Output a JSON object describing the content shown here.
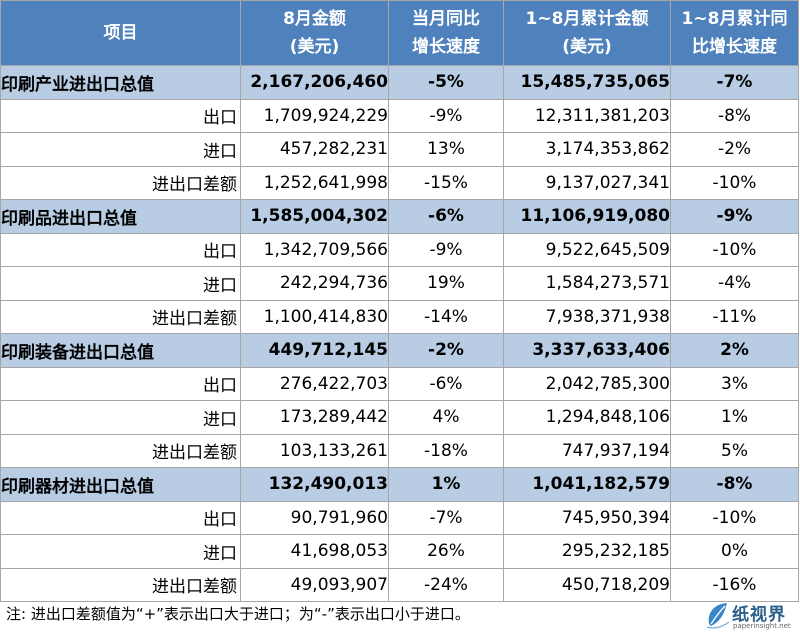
{
  "header": {
    "item": "项目",
    "col1": [
      "8月金额",
      "(美元)"
    ],
    "col2": [
      "当月同比",
      "增长速度"
    ],
    "col3": [
      "1~8月累计金额",
      "(美元)"
    ],
    "col4": [
      "1~8月累计同",
      "比增长速度"
    ]
  },
  "rows": [
    {
      "type": "sum",
      "item": "印刷产业进出口总值",
      "aug": "2,167,206,460",
      "yoy": "-5%",
      "ytd": "15,485,735,065",
      "ytd_yoy": "-7%"
    },
    {
      "type": "sub",
      "item": "出口",
      "aug": "1,709,924,229",
      "yoy": "-9%",
      "ytd": "12,311,381,203",
      "ytd_yoy": "-8%"
    },
    {
      "type": "sub",
      "item": "进口",
      "aug": "457,282,231",
      "yoy": "13%",
      "ytd": "3,174,353,862",
      "ytd_yoy": "-2%"
    },
    {
      "type": "sub",
      "item": "进出口差额",
      "aug": "1,252,641,998",
      "yoy": "-15%",
      "ytd": "9,137,027,341",
      "ytd_yoy": "-10%"
    },
    {
      "type": "sum",
      "item": "印刷品进出口总值",
      "aug": "1,585,004,302",
      "yoy": "-6%",
      "ytd": "11,106,919,080",
      "ytd_yoy": "-9%"
    },
    {
      "type": "sub",
      "item": "出口",
      "aug": "1,342,709,566",
      "yoy": "-9%",
      "ytd": "9,522,645,509",
      "ytd_yoy": "-10%"
    },
    {
      "type": "sub",
      "item": "进口",
      "aug": "242,294,736",
      "yoy": "19%",
      "ytd": "1,584,273,571",
      "ytd_yoy": "-4%"
    },
    {
      "type": "sub",
      "item": "进出口差额",
      "aug": "1,100,414,830",
      "yoy": "-14%",
      "ytd": "7,938,371,938",
      "ytd_yoy": "-11%"
    },
    {
      "type": "sum",
      "item": "印刷装备进出口总值",
      "aug": "449,712,145",
      "yoy": "-2%",
      "ytd": "3,337,633,406",
      "ytd_yoy": "2%"
    },
    {
      "type": "sub",
      "item": "出口",
      "aug": "276,422,703",
      "yoy": "-6%",
      "ytd": "2,042,785,300",
      "ytd_yoy": "3%"
    },
    {
      "type": "sub",
      "item": "进口",
      "aug": "173,289,442",
      "yoy": "4%",
      "ytd": "1,294,848,106",
      "ytd_yoy": "1%"
    },
    {
      "type": "sub",
      "item": "进出口差额",
      "aug": "103,133,261",
      "yoy": "-18%",
      "ytd": "747,937,194",
      "ytd_yoy": "5%"
    },
    {
      "type": "sum",
      "item": "印刷器材进出口总值",
      "aug": "132,490,013",
      "yoy": "1%",
      "ytd": "1,041,182,579",
      "ytd_yoy": "-8%"
    },
    {
      "type": "sub",
      "item": "出口",
      "aug": "90,791,960",
      "yoy": "-7%",
      "ytd": "745,950,394",
      "ytd_yoy": "-10%"
    },
    {
      "type": "sub",
      "item": "进口",
      "aug": "41,698,053",
      "yoy": "26%",
      "ytd": "295,232,185",
      "ytd_yoy": "0%"
    },
    {
      "type": "sub",
      "item": "进出口差额",
      "aug": "49,093,907",
      "yoy": "-24%",
      "ytd": "450,718,209",
      "ytd_yoy": "-16%"
    }
  ],
  "note": "注: 进出口差额值为“+”表示出口大于进口；为“-”表示出口小于进口。",
  "logo": {
    "name": "纸视界",
    "url": "paperinsight.net",
    "icon": "paper-leaf-icon",
    "color": "#2c5f8a"
  },
  "colors": {
    "header_bg": "#4f81bd",
    "summary_bg": "#b8cce4"
  }
}
